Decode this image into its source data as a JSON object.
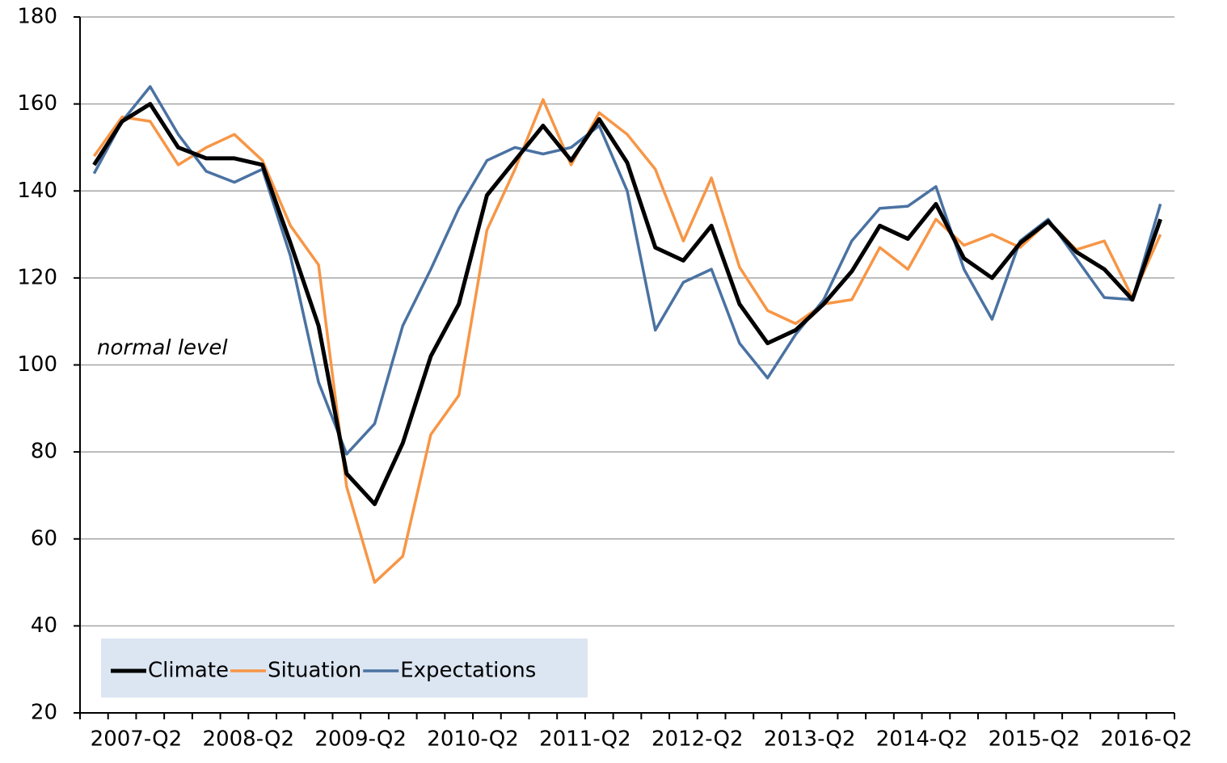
{
  "chart_data": {
    "type": "line",
    "categories": [
      null,
      "2007-Q2",
      null,
      null,
      null,
      "2008-Q2",
      null,
      null,
      null,
      "2009-Q2",
      null,
      null,
      null,
      "2010-Q2",
      null,
      null,
      null,
      "2011-Q2",
      null,
      null,
      null,
      "2012-Q2",
      null,
      null,
      null,
      "2013-Q2",
      null,
      null,
      null,
      "2014-Q2",
      null,
      null,
      null,
      "2015-Q2",
      null,
      null,
      null,
      "2016-Q2",
      null
    ],
    "series": [
      {
        "name": "Climate",
        "color": "#000000",
        "values": [
          146,
          156,
          160,
          150,
          147.5,
          147.5,
          146,
          128,
          109,
          75,
          68,
          82,
          102,
          114,
          139,
          147,
          155,
          147,
          156.5,
          146.5,
          127,
          124,
          132,
          114,
          105,
          108,
          114,
          121.5,
          132,
          129,
          137,
          124.5,
          120,
          128,
          133,
          126,
          122,
          115,
          133.5
        ]
      },
      {
        "name": "Situation",
        "color": "#f79646",
        "values": [
          148,
          157,
          156,
          146,
          150,
          153,
          147,
          132,
          123,
          72,
          50,
          56,
          84,
          93,
          131,
          145,
          161,
          146,
          158,
          153,
          145,
          128.5,
          143,
          122.5,
          112.5,
          109.5,
          114,
          115,
          127,
          122,
          133.5,
          127.5,
          130,
          127,
          133,
          126.5,
          128.5,
          115.5,
          130
        ]
      },
      {
        "name": "Expectations",
        "color": "#4a72a2",
        "values": [
          144,
          156,
          164,
          153,
          144.5,
          142,
          145,
          125,
          96,
          79.5,
          86.5,
          109,
          122,
          136,
          147,
          150,
          148.5,
          150,
          155,
          140,
          108,
          119,
          122,
          105,
          97,
          107,
          115,
          128.5,
          136,
          136.5,
          141,
          122,
          110.5,
          128.5,
          133.5,
          124.5,
          115.5,
          115,
          137
        ]
      }
    ],
    "annotation": "normal level",
    "ylim": [
      20,
      180
    ],
    "yticks": [
      20,
      40,
      60,
      80,
      100,
      120,
      140,
      160,
      180
    ],
    "grid": true,
    "legend": "lower left"
  }
}
